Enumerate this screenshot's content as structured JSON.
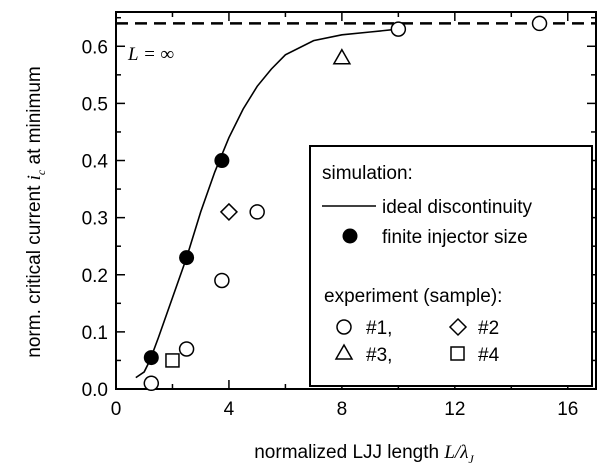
{
  "chart_data": {
    "type": "scatter",
    "xlabel": {
      "text": "normalized LJJ length ",
      "var": "L/λ",
      "sub": "J"
    },
    "ylabel": {
      "text_before": "norm. critical current ",
      "var": "i",
      "sub": "c",
      "text_after": " at minimum"
    },
    "xlim": [
      0,
      17
    ],
    "ylim": [
      0,
      0.66
    ],
    "x_ticks": [
      0,
      4,
      8,
      12,
      16
    ],
    "x_tick_labels": [
      "0",
      "4",
      "8",
      "12",
      "16"
    ],
    "y_ticks": [
      0.0,
      0.1,
      0.2,
      0.3,
      0.4,
      0.5,
      0.6
    ],
    "y_tick_labels": [
      "0.0",
      "0.1",
      "0.2",
      "0.3",
      "0.4",
      "0.5",
      "0.6"
    ],
    "asymptote": {
      "y": 0.64,
      "label": "L = ∞"
    },
    "series": [
      {
        "name": "ideal discontinuity",
        "kind": "line",
        "x": [
          0.7,
          1.0,
          1.2,
          1.5,
          2.0,
          2.5,
          3.0,
          3.5,
          4.0,
          4.5,
          5.0,
          5.5,
          6.0,
          7.0,
          8.0,
          9.0,
          10.0
        ],
        "y": [
          0.02,
          0.03,
          0.05,
          0.09,
          0.16,
          0.23,
          0.31,
          0.38,
          0.44,
          0.49,
          0.53,
          0.56,
          0.585,
          0.61,
          0.62,
          0.625,
          0.63
        ]
      },
      {
        "name": "finite injector size",
        "kind": "marker",
        "marker": "filled-circle",
        "x": [
          1.25,
          2.5,
          3.75
        ],
        "y": [
          0.055,
          0.23,
          0.4
        ]
      },
      {
        "name": "#1,",
        "kind": "marker",
        "marker": "open-circle",
        "x": [
          1.25,
          2.5,
          3.75,
          5.0,
          10.0,
          15.0
        ],
        "y": [
          0.01,
          0.07,
          0.19,
          0.31,
          0.63,
          0.64
        ]
      },
      {
        "name": "#2",
        "kind": "marker",
        "marker": "open-diamond",
        "x": [
          4.0
        ],
        "y": [
          0.31
        ]
      },
      {
        "name": "#3,",
        "kind": "marker",
        "marker": "open-triangle",
        "x": [
          8.0
        ],
        "y": [
          0.58
        ]
      },
      {
        "name": "#4",
        "kind": "marker",
        "marker": "open-square",
        "x": [
          2.0
        ],
        "y": [
          0.05
        ]
      }
    ],
    "legend": {
      "placement": "right-middle",
      "heading1": "simulation:",
      "heading2": "experiment (sample):"
    }
  }
}
